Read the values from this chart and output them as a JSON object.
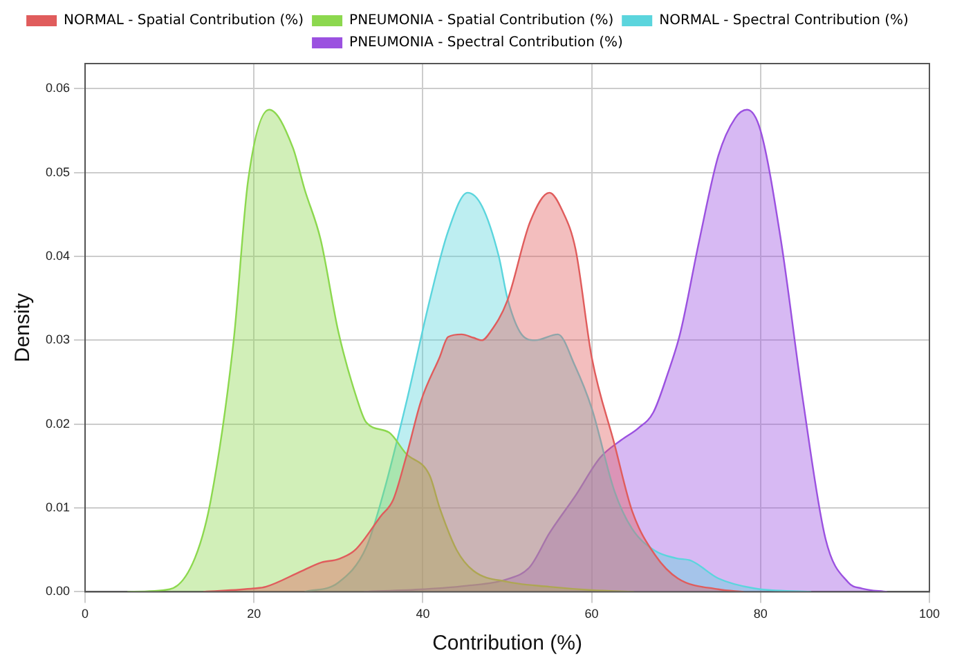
{
  "chart_data": {
    "type": "area",
    "xlabel": "Contribution (%)",
    "ylabel": "Density",
    "xlim": [
      0,
      100
    ],
    "xticks": [
      0,
      20,
      40,
      60,
      80,
      100
    ],
    "ylim": [
      0,
      0.063
    ],
    "yticks": [
      {
        "value": 0,
        "label": "0.00"
      },
      {
        "value": 0.01,
        "label": "0.01"
      },
      {
        "value": 0.02,
        "label": "0.02"
      },
      {
        "value": 0.03,
        "label": "0.03"
      },
      {
        "value": 0.04,
        "label": "0.04"
      },
      {
        "value": 0.05,
        "label": "0.05"
      },
      {
        "value": 0.06,
        "label": "0.06"
      }
    ],
    "grid": true,
    "legend": "top",
    "marker": "none",
    "series": [
      {
        "name": "NORMAL - Spatial Contribution (%)",
        "color": "#e05c5c",
        "x": [
          14,
          20,
          21.4,
          25.7,
          28,
          30,
          32,
          35,
          36.5,
          38,
          39.8,
          42,
          43,
          44.6,
          46,
          47,
          48,
          50,
          52.7,
          55,
          56.5,
          58.1,
          60,
          62.7,
          64.8,
          67.5,
          70.2,
          75,
          78
        ],
        "values": [
          0,
          0.0004,
          0.0006,
          0.0025,
          0.0035,
          0.0039,
          0.005,
          0.009,
          0.011,
          0.016,
          0.0228,
          0.028,
          0.0304,
          0.0307,
          0.0303,
          0.03,
          0.031,
          0.0347,
          0.0441,
          0.0476,
          0.0455,
          0.0408,
          0.028,
          0.0176,
          0.0096,
          0.0044,
          0.0016,
          0.0003,
          0
        ]
      },
      {
        "name": "PNEUMONIA - Spatial Contribution (%)",
        "color": "#8cd84e",
        "x": [
          5,
          10,
          13,
          14.9,
          17.6,
          19.3,
          21.8,
          24.6,
          26,
          27.9,
          30,
          32.2,
          33.3,
          36,
          38,
          40.8,
          42,
          44,
          46,
          50,
          55,
          60,
          65
        ],
        "values": [
          0,
          0.0003,
          0.004,
          0.011,
          0.03,
          0.049,
          0.0575,
          0.053,
          0.048,
          0.042,
          0.031,
          0.023,
          0.0202,
          0.019,
          0.0165,
          0.0139,
          0.01,
          0.005,
          0.0025,
          0.0012,
          0.0006,
          0.0002,
          0
        ]
      },
      {
        "name": "NORMAL - Spectral Contribution (%)",
        "color": "#5bd5dd",
        "x": [
          26,
          30,
          33.3,
          35.4,
          38.1,
          40.8,
          43,
          45.3,
          47,
          49,
          50,
          51.5,
          53.3,
          56,
          58,
          60,
          62.7,
          64.8,
          67.5,
          70,
          71.8,
          75,
          79.3,
          86
        ],
        "values": [
          0,
          0.0011,
          0.0053,
          0.012,
          0.0228,
          0.0347,
          0.043,
          0.0476,
          0.046,
          0.04,
          0.0351,
          0.031,
          0.03,
          0.0307,
          0.027,
          0.0219,
          0.012,
          0.0075,
          0.0049,
          0.004,
          0.0037,
          0.0016,
          0.0004,
          0
        ]
      },
      {
        "name": "PNEUMONIA - Spectral Contribution (%)",
        "color": "#9b51e0",
        "x": [
          33,
          40,
          45,
          50,
          52.7,
          55,
          58.1,
          61,
          63.5,
          65.5,
          67.3,
          69,
          70.5,
          72.7,
          75,
          77,
          78.4,
          80,
          82.4,
          85,
          87.7,
          90.4,
          92,
          95
        ],
        "values": [
          0,
          0.0003,
          0.0007,
          0.0015,
          0.003,
          0.007,
          0.0115,
          0.016,
          0.0181,
          0.0195,
          0.0214,
          0.026,
          0.0309,
          0.0417,
          0.052,
          0.0565,
          0.0575,
          0.055,
          0.042,
          0.023,
          0.0063,
          0.0011,
          0.0004,
          0
        ]
      }
    ]
  }
}
